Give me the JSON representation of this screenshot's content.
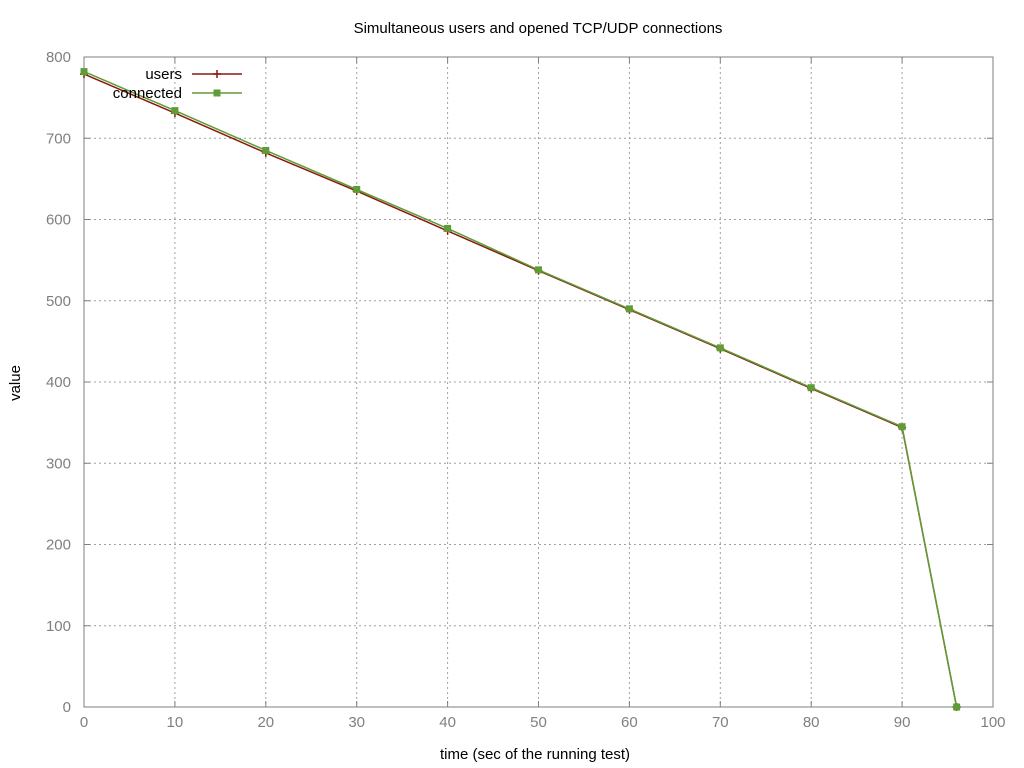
{
  "chart_data": {
    "type": "line",
    "title": "Simultaneous users and opened TCP/UDP connections",
    "xlabel": "time (sec of the running test)",
    "ylabel": "value",
    "xlim": [
      0,
      100
    ],
    "ylim": [
      0,
      800
    ],
    "xticks": [
      "0",
      "10",
      "20",
      "30",
      "40",
      "50",
      "60",
      "70",
      "80",
      "90",
      "100"
    ],
    "yticks": [
      "0",
      "100",
      "200",
      "300",
      "400",
      "500",
      "600",
      "700",
      "800"
    ],
    "grid": true,
    "legend_position": "top-left",
    "series": [
      {
        "name": "users",
        "color": "#8b1a0e",
        "marker": "plus",
        "x": [
          0,
          10,
          20,
          30,
          40,
          50,
          60,
          70,
          80,
          90,
          96
        ],
        "y": [
          779,
          731,
          682,
          635,
          586,
          537,
          489,
          441,
          392,
          344,
          0
        ]
      },
      {
        "name": "connected",
        "color": "#5e9c36",
        "marker": "filled-square",
        "x": [
          0,
          10,
          20,
          30,
          40,
          50,
          60,
          70,
          80,
          90,
          96
        ],
        "y": [
          782,
          734,
          685,
          637,
          589,
          538,
          490,
          442,
          393,
          345,
          0
        ]
      }
    ]
  }
}
